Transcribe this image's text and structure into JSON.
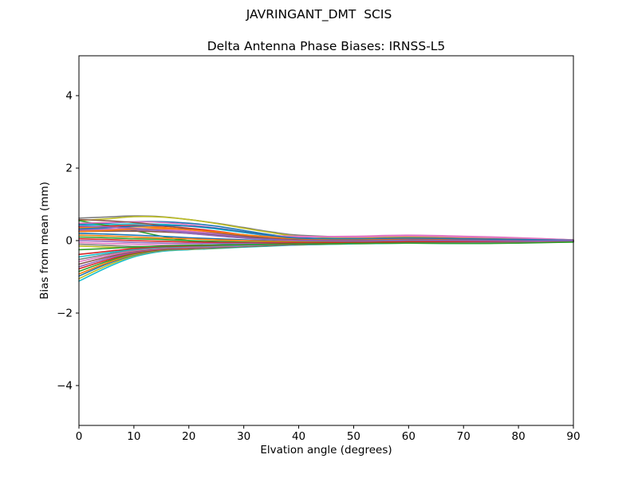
{
  "figure": {
    "suptitle": "JAVRINGANT_DMT  SCIS",
    "background": "#ffffff",
    "axis_color": "#000000"
  },
  "chart_data": {
    "type": "line",
    "suptitle": "JAVRINGANT_DMT  SCIS",
    "title": "Delta Antenna Phase Biases: IRNSS-L5",
    "xlabel": "Elvation angle (degrees)",
    "ylabel": "Bias from mean (mm)",
    "xlim": [
      0,
      90
    ],
    "ylim": [
      -5.1,
      5.1
    ],
    "xticks": [
      0,
      10,
      20,
      30,
      40,
      50,
      60,
      70,
      80,
      90
    ],
    "xtick_labels": [
      "0",
      "10",
      "20",
      "30",
      "40",
      "50",
      "60",
      "70",
      "80",
      "90"
    ],
    "yticks": [
      -4,
      -2,
      0,
      2,
      4
    ],
    "ytick_labels": [
      "−4",
      "−2",
      "0",
      "2",
      "4"
    ],
    "grid": false,
    "legend_position": "none",
    "x": [
      0,
      5,
      10,
      15,
      20,
      25,
      30,
      35,
      40,
      50,
      60,
      70,
      80,
      90
    ],
    "series": [
      {
        "color": "#7f7f7f",
        "values": [
          0.62,
          0.65,
          0.68,
          0.66,
          0.58,
          0.48,
          0.36,
          0.24,
          0.15,
          0.1,
          0.12,
          0.1,
          0.06,
          0.02
        ]
      },
      {
        "color": "#bcbd22",
        "values": [
          0.55,
          0.6,
          0.66,
          0.65,
          0.58,
          0.47,
          0.34,
          0.22,
          0.12,
          0.08,
          0.1,
          0.08,
          0.04,
          0.0
        ]
      },
      {
        "color": "#1f77b4",
        "values": [
          0.45,
          0.48,
          0.52,
          0.52,
          0.48,
          0.4,
          0.28,
          0.16,
          0.08,
          0.05,
          0.08,
          0.06,
          0.03,
          0.0
        ]
      },
      {
        "color": "#17becf",
        "values": [
          0.42,
          0.44,
          0.46,
          0.45,
          0.4,
          0.32,
          0.22,
          0.12,
          0.06,
          0.04,
          0.06,
          0.04,
          0.02,
          0.0
        ]
      },
      {
        "color": "#2ca02c",
        "values": [
          0.55,
          0.42,
          0.28,
          0.12,
          0.0,
          -0.08,
          -0.12,
          -0.12,
          -0.1,
          -0.08,
          -0.06,
          -0.08,
          -0.06,
          -0.04
        ]
      },
      {
        "color": "#d62728",
        "values": [
          0.38,
          0.4,
          0.42,
          0.4,
          0.34,
          0.26,
          0.16,
          0.1,
          0.05,
          0.03,
          0.05,
          0.04,
          0.02,
          0.0
        ]
      },
      {
        "color": "#ff7f0e",
        "values": [
          0.35,
          0.37,
          0.38,
          0.36,
          0.3,
          0.22,
          0.14,
          0.08,
          0.04,
          0.02,
          0.05,
          0.03,
          0.01,
          0.0
        ]
      },
      {
        "color": "#e377c2",
        "values": [
          0.3,
          0.32,
          0.33,
          0.31,
          0.26,
          0.19,
          0.12,
          0.08,
          0.1,
          0.12,
          0.15,
          0.12,
          0.08,
          0.02
        ]
      },
      {
        "color": "#9467bd",
        "values": [
          0.28,
          0.29,
          0.3,
          0.28,
          0.23,
          0.17,
          0.1,
          0.05,
          0.02,
          0.0,
          0.02,
          0.01,
          0.0,
          0.0
        ]
      },
      {
        "color": "#8c564b",
        "values": [
          0.25,
          0.26,
          0.26,
          0.24,
          0.2,
          0.14,
          0.08,
          0.04,
          0.01,
          0.0,
          0.02,
          0.0,
          -0.01,
          0.0
        ]
      },
      {
        "color": "#1f77b4",
        "values": [
          0.2,
          0.18,
          0.15,
          0.12,
          0.08,
          0.05,
          0.02,
          0.0,
          -0.02,
          -0.02,
          0.0,
          -0.01,
          -0.02,
          0.0
        ]
      },
      {
        "color": "#ff7f0e",
        "values": [
          0.15,
          0.13,
          0.1,
          0.07,
          0.05,
          0.02,
          0.0,
          -0.02,
          -0.03,
          -0.03,
          -0.01,
          -0.02,
          -0.02,
          0.0
        ]
      },
      {
        "color": "#2ca02c",
        "values": [
          0.1,
          0.08,
          0.05,
          0.03,
          0.0,
          -0.02,
          -0.04,
          -0.05,
          -0.05,
          -0.04,
          -0.02,
          -0.03,
          -0.02,
          0.0
        ]
      },
      {
        "color": "#d62728",
        "values": [
          0.05,
          0.03,
          0.0,
          -0.02,
          -0.04,
          -0.05,
          -0.06,
          -0.06,
          -0.06,
          -0.05,
          -0.03,
          -0.04,
          -0.03,
          -0.01
        ]
      },
      {
        "color": "#9467bd",
        "values": [
          0.0,
          -0.02,
          -0.05,
          -0.07,
          -0.08,
          -0.08,
          -0.08,
          -0.08,
          -0.07,
          -0.06,
          -0.04,
          -0.05,
          -0.04,
          -0.01
        ]
      },
      {
        "color": "#e377c2",
        "values": [
          -0.05,
          -0.08,
          -0.1,
          -0.12,
          -0.12,
          -0.12,
          -0.11,
          -0.1,
          -0.09,
          -0.07,
          -0.05,
          -0.06,
          -0.04,
          -0.02
        ]
      },
      {
        "color": "#7f7f7f",
        "values": [
          -0.1,
          -0.13,
          -0.16,
          -0.17,
          -0.17,
          -0.16,
          -0.14,
          -0.12,
          -0.1,
          -0.08,
          -0.06,
          -0.07,
          -0.05,
          -0.02
        ]
      },
      {
        "color": "#bcbd22",
        "values": [
          -0.15,
          -0.18,
          -0.2,
          -0.21,
          -0.2,
          -0.19,
          -0.16,
          -0.14,
          -0.12,
          -0.09,
          -0.07,
          -0.08,
          -0.06,
          -0.03
        ]
      },
      {
        "color": "#17becf",
        "values": [
          -1.12,
          -0.75,
          -0.45,
          -0.3,
          -0.25,
          -0.22,
          -0.18,
          -0.15,
          -0.12,
          -0.09,
          -0.07,
          -0.08,
          -0.06,
          -0.03
        ]
      },
      {
        "color": "#bcbd22",
        "values": [
          -1.05,
          -0.7,
          -0.42,
          -0.28,
          -0.24,
          -0.21,
          -0.17,
          -0.14,
          -0.11,
          -0.08,
          -0.06,
          -0.07,
          -0.05,
          -0.02
        ]
      },
      {
        "color": "#1f77b4",
        "values": [
          -0.98,
          -0.65,
          -0.4,
          -0.27,
          -0.23,
          -0.2,
          -0.17,
          -0.14,
          -0.11,
          -0.08,
          -0.06,
          -0.07,
          -0.05,
          -0.02
        ]
      },
      {
        "color": "#ff7f0e",
        "values": [
          -0.92,
          -0.62,
          -0.38,
          -0.26,
          -0.22,
          -0.19,
          -0.16,
          -0.13,
          -0.1,
          -0.08,
          -0.06,
          -0.06,
          -0.05,
          -0.02
        ]
      },
      {
        "color": "#2ca02c",
        "values": [
          -0.85,
          -0.58,
          -0.36,
          -0.25,
          -0.21,
          -0.19,
          -0.16,
          -0.13,
          -0.1,
          -0.07,
          -0.05,
          -0.06,
          -0.04,
          -0.02
        ]
      },
      {
        "color": "#d62728",
        "values": [
          -0.78,
          -0.54,
          -0.34,
          -0.24,
          -0.21,
          -0.18,
          -0.15,
          -0.12,
          -0.1,
          -0.07,
          -0.05,
          -0.06,
          -0.04,
          -0.02
        ]
      },
      {
        "color": "#9467bd",
        "values": [
          -0.72,
          -0.5,
          -0.32,
          -0.23,
          -0.2,
          -0.18,
          -0.15,
          -0.12,
          -0.09,
          -0.07,
          -0.05,
          -0.05,
          -0.04,
          -0.01
        ]
      },
      {
        "color": "#8c564b",
        "values": [
          -0.65,
          -0.46,
          -0.3,
          -0.22,
          -0.19,
          -0.17,
          -0.14,
          -0.12,
          -0.09,
          -0.06,
          -0.04,
          -0.05,
          -0.03,
          -0.01
        ]
      },
      {
        "color": "#e377c2",
        "values": [
          -0.58,
          -0.42,
          -0.28,
          -0.21,
          -0.18,
          -0.16,
          -0.14,
          -0.11,
          -0.09,
          -0.06,
          -0.04,
          -0.05,
          -0.03,
          -0.01
        ]
      },
      {
        "color": "#7f7f7f",
        "values": [
          -0.52,
          -0.38,
          -0.26,
          -0.2,
          -0.17,
          -0.15,
          -0.13,
          -0.11,
          -0.08,
          -0.06,
          -0.04,
          -0.04,
          -0.03,
          -0.01
        ]
      },
      {
        "color": "#17becf",
        "values": [
          -0.45,
          -0.34,
          -0.24,
          -0.18,
          -0.16,
          -0.14,
          -0.12,
          -0.1,
          -0.08,
          -0.05,
          -0.03,
          -0.04,
          -0.02,
          -0.01
        ]
      },
      {
        "color": "#d62728",
        "values": [
          -0.38,
          -0.3,
          -0.22,
          -0.17,
          -0.15,
          -0.13,
          -0.11,
          -0.09,
          -0.07,
          -0.05,
          -0.03,
          -0.03,
          -0.02,
          -0.01
        ]
      },
      {
        "color": "#e377c2",
        "values": [
          0.48,
          0.5,
          0.52,
          0.5,
          0.44,
          0.35,
          0.24,
          0.14,
          0.12,
          0.1,
          0.13,
          0.1,
          0.07,
          0.02
        ]
      },
      {
        "color": "#8c564b",
        "values": [
          0.58,
          0.55,
          0.5,
          0.42,
          0.32,
          0.22,
          0.13,
          0.06,
          0.02,
          0.0,
          0.02,
          0.01,
          0.0,
          0.0
        ]
      },
      {
        "color": "#ff7f0e",
        "values": [
          0.25,
          0.28,
          0.32,
          0.33,
          0.3,
          0.24,
          0.16,
          0.1,
          0.06,
          0.05,
          0.08,
          0.06,
          0.03,
          0.01
        ]
      },
      {
        "color": "#1f77b4",
        "values": [
          0.32,
          0.35,
          0.4,
          0.42,
          0.4,
          0.34,
          0.24,
          0.14,
          0.07,
          0.05,
          0.07,
          0.05,
          0.03,
          0.01
        ]
      },
      {
        "color": "#2ca02c",
        "values": [
          -0.25,
          -0.22,
          -0.18,
          -0.15,
          -0.13,
          -0.12,
          -0.11,
          -0.1,
          -0.09,
          -0.08,
          -0.07,
          -0.08,
          -0.07,
          -0.04
        ]
      },
      {
        "color": "#9467bd",
        "values": [
          0.4,
          0.38,
          0.34,
          0.28,
          0.2,
          0.13,
          0.07,
          0.03,
          0.0,
          -0.01,
          0.01,
          0.0,
          -0.01,
          0.0
        ]
      }
    ]
  }
}
